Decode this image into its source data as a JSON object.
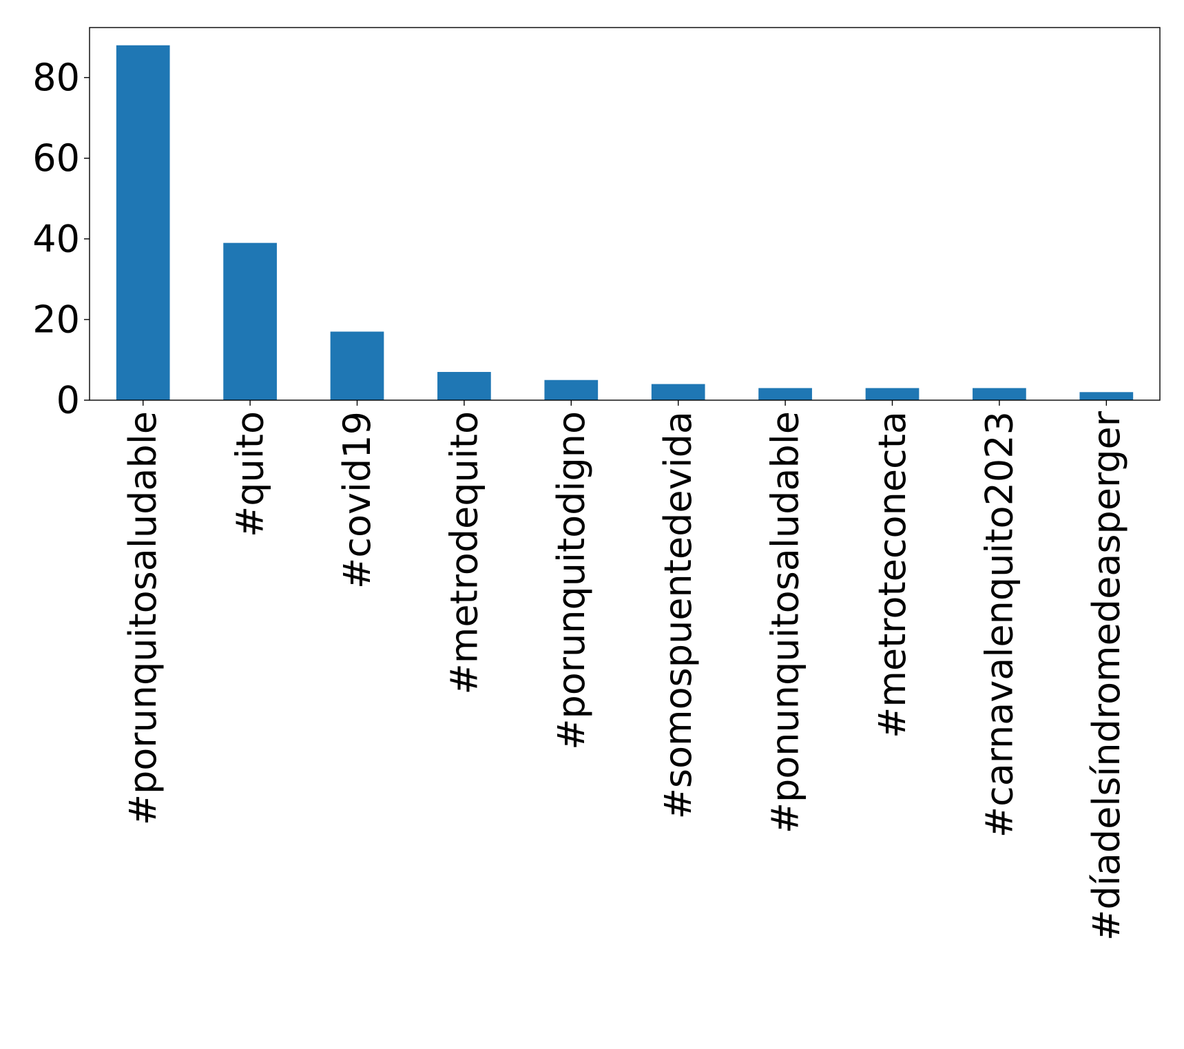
{
  "chart_data": {
    "type": "bar",
    "title": "",
    "xlabel": "",
    "ylabel": "",
    "categories": [
      "#porunquitosaludable",
      "#quito",
      "#covid19",
      "#metrodequito",
      "#porunquitodigno",
      "#somospuentedevida",
      "#ponunquitosaludable",
      "#metroteconecta",
      "#carnavalenquito2023",
      "#díadelsíndromedeasperger"
    ],
    "values": [
      88,
      39,
      17,
      7,
      5,
      4,
      3,
      3,
      3,
      2
    ],
    "ylim": [
      0,
      92.4
    ],
    "yticks": [
      0,
      20,
      40,
      60,
      80
    ],
    "ytick_labels": [
      "0",
      "20",
      "40",
      "60",
      "80"
    ],
    "bar_color": "#1f77b4",
    "grid": false,
    "legend": "none"
  }
}
